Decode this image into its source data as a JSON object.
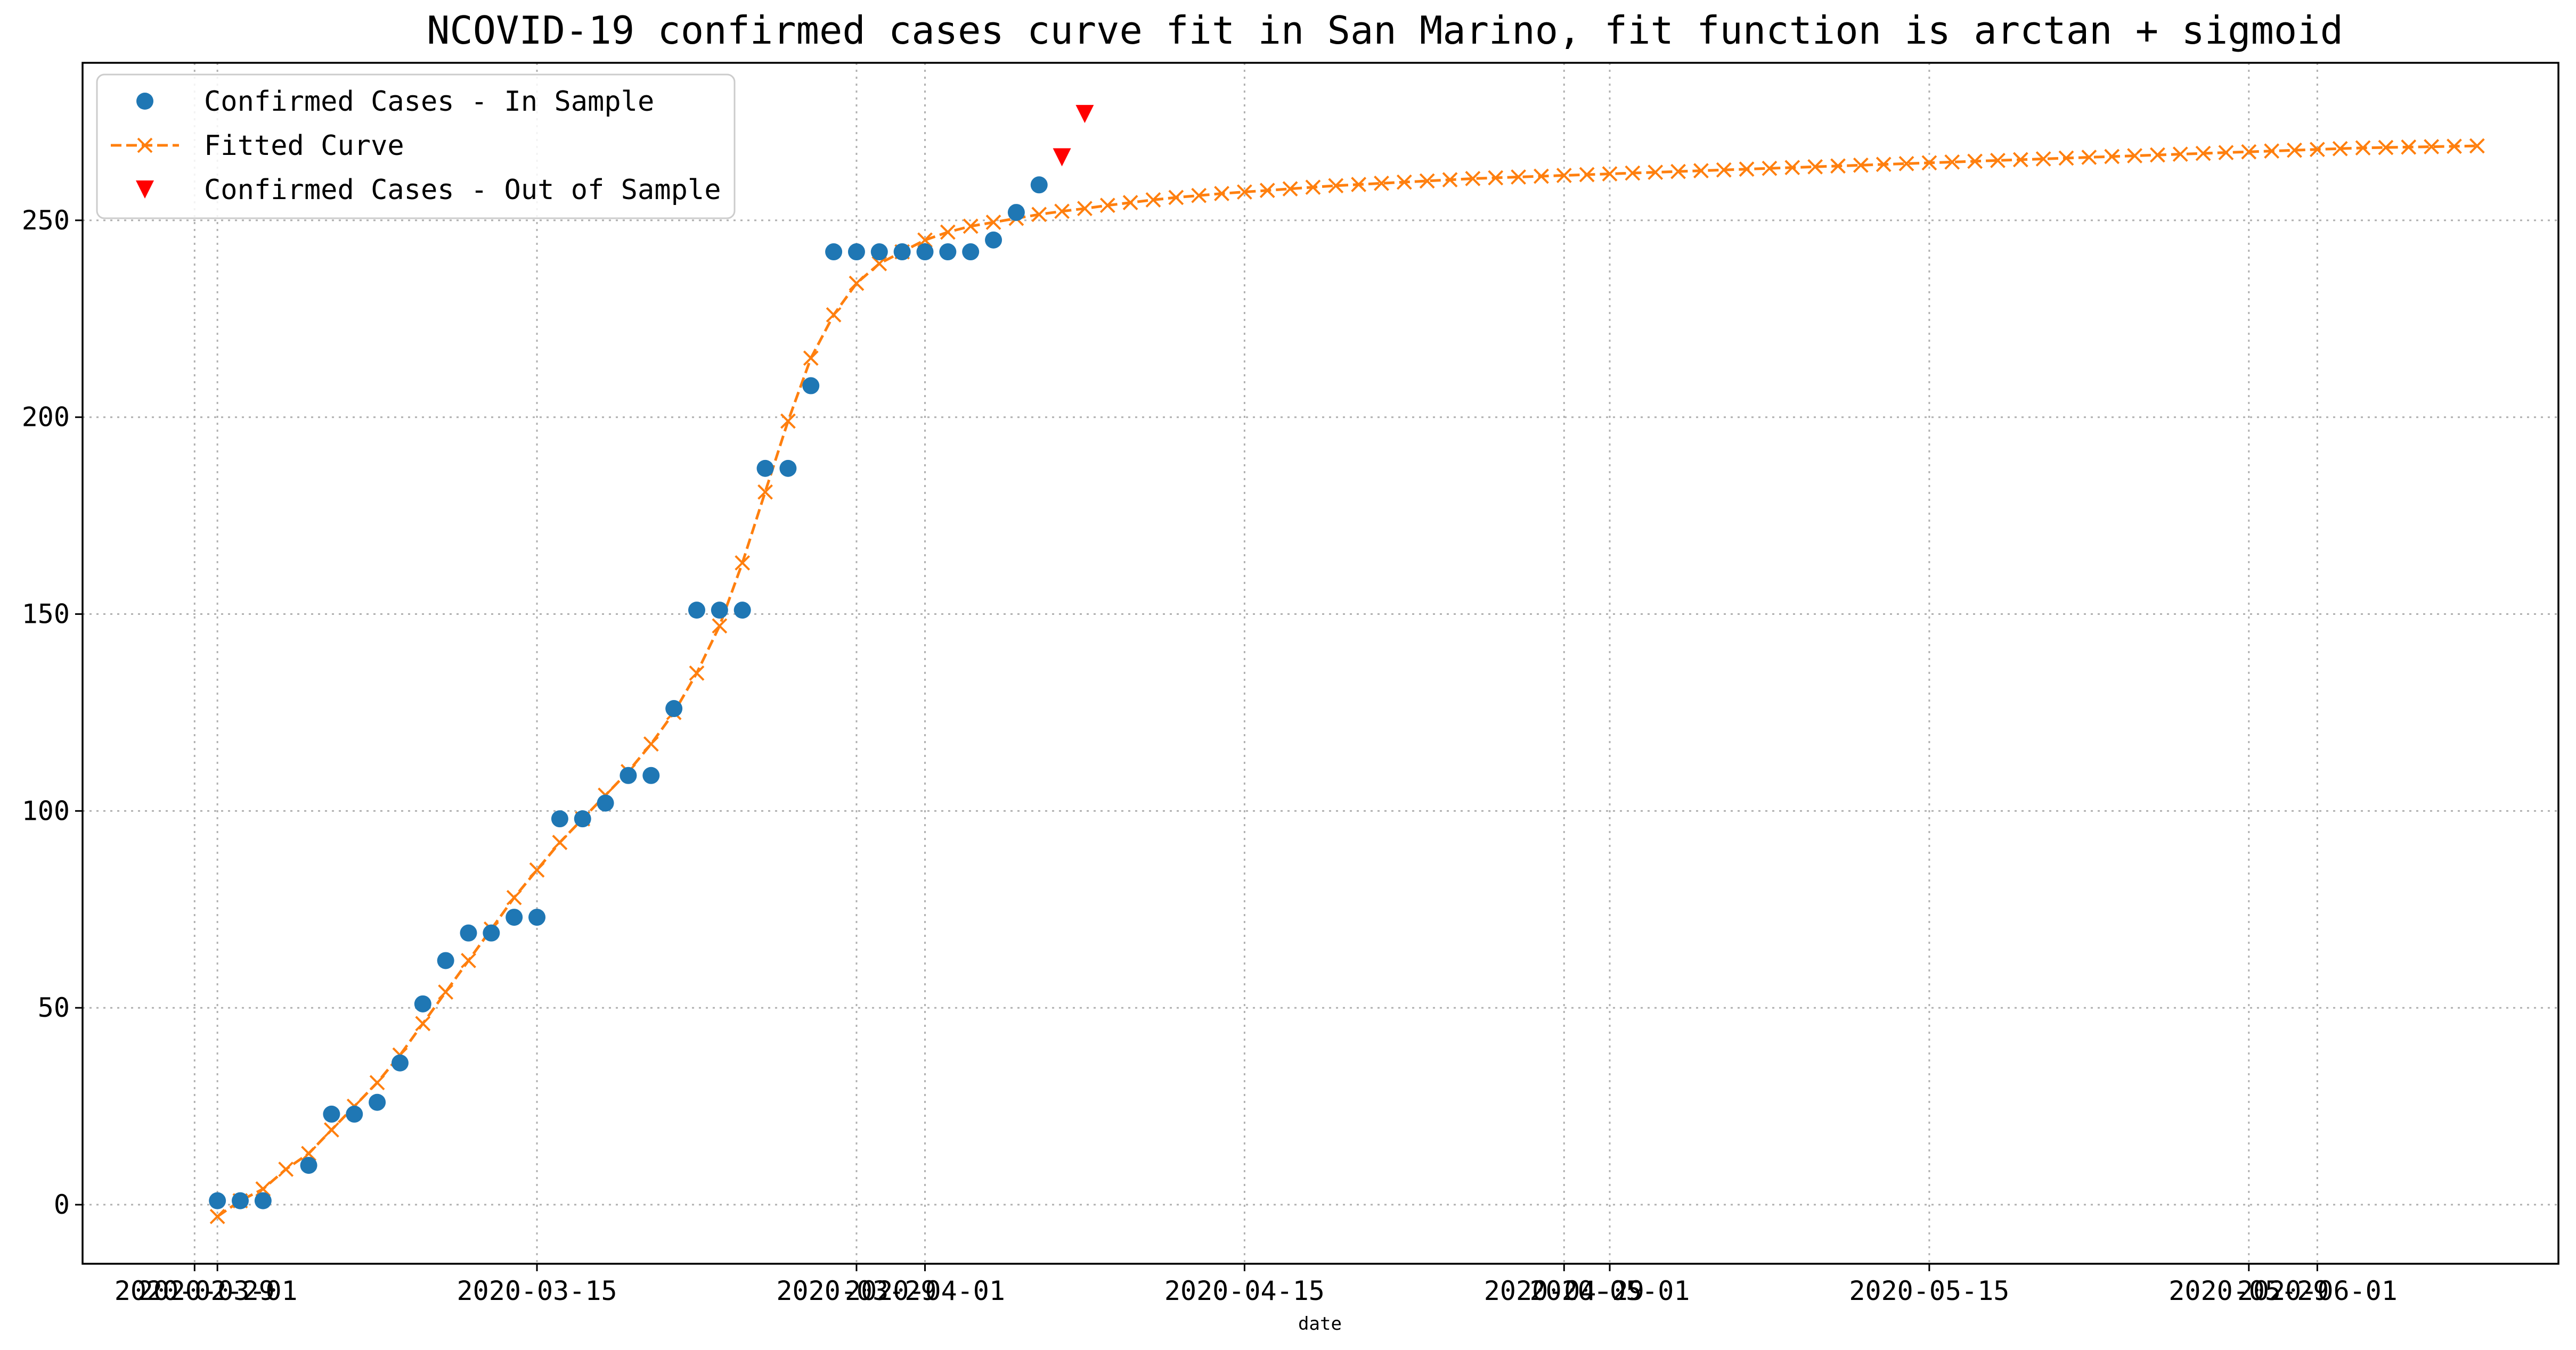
{
  "chart_data": {
    "type": "line",
    "title": "NCOVID-19 confirmed cases curve fit in San Marino, fit function is arctan + sigmoid",
    "xlabel": "date",
    "ylabel": "",
    "ylim": [
      -15,
      290
    ],
    "grid": true,
    "legend_position": "top-left",
    "x_tick_labels": [
      "2020-02-29",
      "2020-03-01",
      "2020-03-15",
      "2020-03-29",
      "2020-04-01",
      "2020-04-15",
      "2020-04-29",
      "2020-05-01",
      "2020-05-15",
      "2020-05-29",
      "2020-06-01"
    ],
    "x_tick_dates": [
      "2020-02-29",
      "2020-03-01",
      "2020-03-15",
      "2020-03-29",
      "2020-04-01",
      "2020-04-15",
      "2020-04-29",
      "2020-05-01",
      "2020-05-15",
      "2020-05-29",
      "2020-06-01"
    ],
    "y_ticks": [
      0,
      50,
      100,
      150,
      200,
      250
    ],
    "series": [
      {
        "name": "Confirmed Cases - In Sample",
        "kind": "scatter",
        "marker": "circle",
        "color": "#1f77b4",
        "x_start": "2020-03-01",
        "values": [
          1,
          1,
          1,
          null,
          10,
          23,
          23,
          26,
          36,
          51,
          62,
          69,
          69,
          73,
          73,
          98,
          98,
          102,
          109,
          109,
          126,
          151,
          151,
          151,
          187,
          187,
          208,
          242,
          242,
          242,
          242,
          242,
          242,
          242,
          245,
          252,
          259
        ]
      },
      {
        "name": "Fitted Curve",
        "kind": "line",
        "marker": "x",
        "linestyle": "dashed",
        "color": "#ff7f0e",
        "x_start": "2020-03-01",
        "values": [
          -3,
          1,
          4,
          9,
          13,
          19,
          25,
          31,
          38,
          46,
          54,
          62,
          70,
          78,
          85,
          92,
          98,
          104,
          110,
          117,
          125,
          135,
          147,
          163,
          181,
          199,
          215,
          226,
          234,
          239,
          242,
          245,
          247,
          248.5,
          249.5,
          250.5,
          251.5,
          252.3,
          253,
          253.8,
          254.5,
          255.2,
          255.8,
          256.3,
          256.8,
          257.2,
          257.6,
          258,
          258.4,
          258.8,
          259.1,
          259.4,
          259.7,
          260,
          260.3,
          260.6,
          260.8,
          261,
          261.2,
          261.4,
          261.6,
          261.8,
          262,
          262.2,
          262.4,
          262.6,
          262.8,
          263,
          263.2,
          263.4,
          263.6,
          263.8,
          264,
          264.2,
          264.4,
          264.6,
          264.8,
          265,
          265.2,
          265.4,
          265.6,
          265.8,
          266,
          266.2,
          266.4,
          266.6,
          266.8,
          267,
          267.2,
          267.4,
          267.6,
          267.8,
          268,
          268.2,
          268.4,
          268.5,
          268.6,
          268.7,
          268.8,
          268.9
        ]
      },
      {
        "name": "Confirmed Cases - Out of Sample",
        "kind": "scatter",
        "marker": "triangle-down",
        "color": "#ff0000",
        "x": [
          "2020-04-07",
          "2020-04-08"
        ],
        "values": [
          266,
          277
        ]
      }
    ]
  }
}
